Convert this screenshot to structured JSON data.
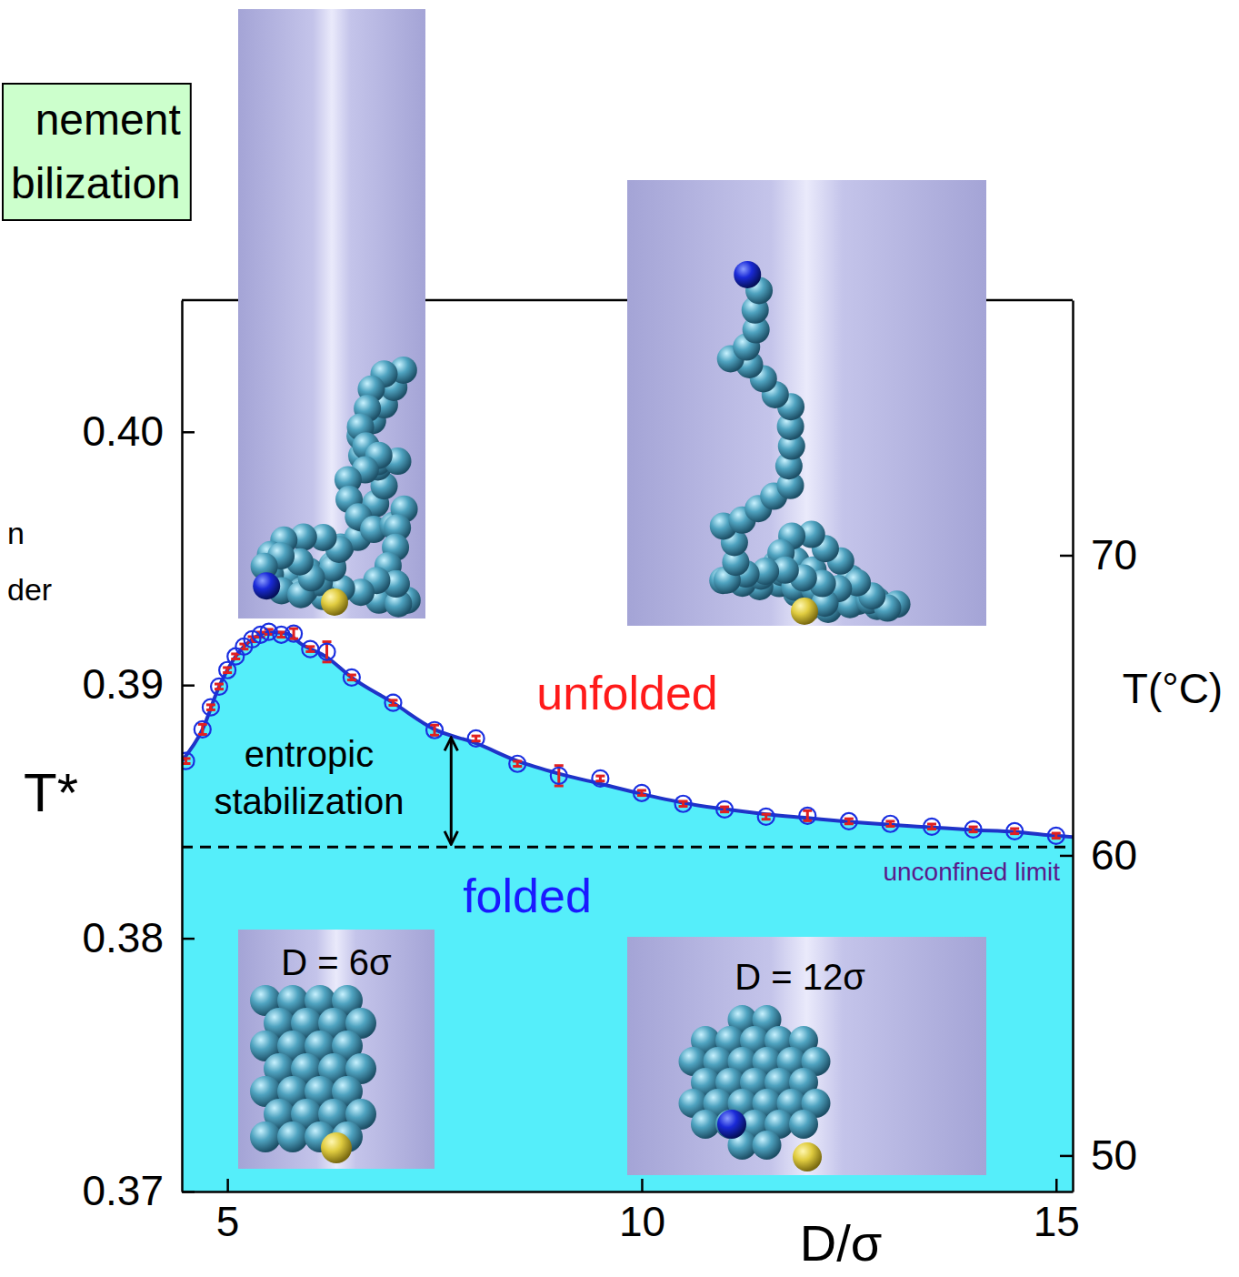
{
  "chart_data": {
    "type": "scatter",
    "x_label": "D/σ",
    "y_label": "T*",
    "y2_label": "T(°C)",
    "xlim": [
      4.45,
      15.2
    ],
    "xticks": [
      5,
      10,
      15
    ],
    "ylim": [
      0.37,
      0.4052
    ],
    "yticks": [
      0.37,
      0.38,
      0.39,
      {
        "value": 0.4,
        "label": "0.40"
      }
    ],
    "y2lim": [
      48.8,
      78.5
    ],
    "y2ticks": [
      50,
      60,
      70
    ],
    "series": [
      {
        "type": "scatter",
        "marker": "open-circle",
        "color": "#1a2fe0",
        "x": [
          4.5,
          4.7,
          4.8,
          4.9,
          5.0,
          5.1,
          5.2,
          5.3,
          5.4,
          5.5,
          5.65,
          5.8,
          6.0,
          6.2,
          6.5,
          7.0,
          7.5,
          8.0,
          8.5,
          9.0,
          9.5,
          10.0,
          10.5,
          11.0,
          11.5,
          12.0,
          12.5,
          13.0,
          13.5,
          14.0,
          14.5,
          15.0
        ],
        "values": [
          0.387,
          0.38825,
          0.38912,
          0.38994,
          0.39059,
          0.39113,
          0.39152,
          0.39181,
          0.39199,
          0.3921,
          0.39199,
          0.39203,
          0.39142,
          0.39131,
          0.3903,
          0.3893,
          0.38822,
          0.38789,
          0.38689,
          0.38642,
          0.38631,
          0.38574,
          0.38531,
          0.38509,
          0.3848,
          0.38484,
          0.38462,
          0.38452,
          0.38441,
          0.3843,
          0.38423,
          0.38405
        ],
        "errors": [
          0.0001,
          0.0002,
          0.0001,
          0.0001,
          0.0001,
          0.0001,
          0.0001,
          0.0001,
          0.0001,
          0.0001,
          0.0001,
          0.0002,
          0.0001,
          0.0004,
          0.0001,
          0.0001,
          0.0002,
          0.0001,
          0.0001,
          0.0004,
          0.0001,
          0.0001,
          0.0001,
          0.0001,
          0.0001,
          0.0002,
          0.0001,
          0.0001,
          0.0001,
          0.0001,
          0.0001,
          0.0001
        ]
      },
      {
        "type": "line",
        "line_style": "solid",
        "color": "#1f33c8",
        "x": [
          4.45,
          4.7,
          4.9,
          5.1,
          5.3,
          5.5,
          5.7,
          5.9,
          6.2,
          6.5,
          7.0,
          7.5,
          8.0,
          8.5,
          9.0,
          9.5,
          10.0,
          10.5,
          11.0,
          11.5,
          12.0,
          12.5,
          13.0,
          13.5,
          14.0,
          14.5,
          15.0,
          15.2
        ],
        "values": [
          0.387,
          0.38825,
          0.38994,
          0.39113,
          0.39181,
          0.39208,
          0.39205,
          0.3916,
          0.3911,
          0.3903,
          0.3893,
          0.38825,
          0.3877,
          0.387,
          0.3865,
          0.3861,
          0.3857,
          0.38535,
          0.3851,
          0.3849,
          0.38475,
          0.3846,
          0.38448,
          0.38438,
          0.38428,
          0.3842,
          0.38405,
          0.384
        ]
      }
    ],
    "reference": {
      "value": 0.3836,
      "label": "unconfined limit",
      "line_style": "dashed"
    },
    "region_labels": [
      {
        "label": "unfolded",
        "color": "#ff1a1a"
      },
      {
        "label": "folded",
        "color": "#1a1aff"
      }
    ],
    "annotation": "entropic stabilization",
    "inset_labels": [
      "D = 6σ",
      "D = 12σ"
    ],
    "box_text": [
      "nement",
      "bilization"
    ],
    "side_text": [
      "n",
      "der"
    ]
  }
}
